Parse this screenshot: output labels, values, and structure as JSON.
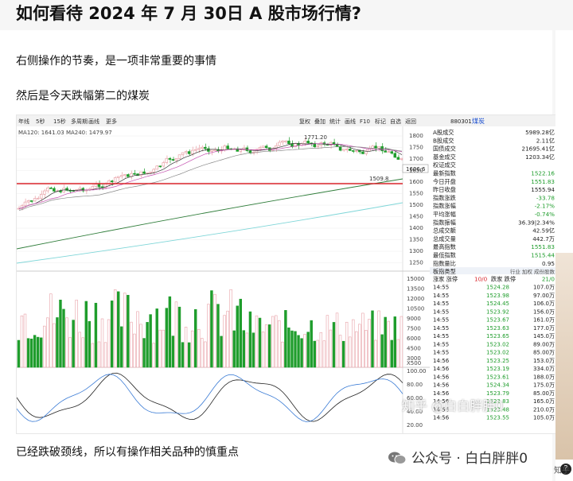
{
  "article": {
    "title": "如何看待 2024 年 7 月 30日 A 股市场行情?",
    "para1": "右侧操作的节奏，是一项非常重要的事情",
    "para2": "然后是今天跌幅第二的煤炭",
    "para3": "已经跌破颈线，所以有操作相关品种的慎重点"
  },
  "watermark": {
    "account": "公众号 · 白白胖胖0",
    "zhihu": "知乎 @白白胖胖0"
  },
  "sidebar": {
    "label": "知乎",
    "help": "?"
  },
  "colors": {
    "up": "#e8a1a7",
    "down": "#1f9d2c",
    "ma_red": "#d8232a",
    "ma_cyan": "#7fd6d8",
    "ma_green": "#2f7d3a"
  },
  "chart": {
    "toolbar_left": [
      "年线",
      "5秒",
      "15秒",
      "多周期",
      "画线",
      "更多"
    ],
    "toolbar_right": [
      "复权",
      "叠加",
      "统计",
      "画线",
      "F10",
      "标记",
      "自选",
      "返回"
    ],
    "ma_legend": "MA120: 1641.03  MA240: 1479.97",
    "peak_label": "1771.20",
    "low_label": "1509.8",
    "current_price": "1606.6",
    "index_code": "880301",
    "index_name": "煤炭",
    "price_ticks": [
      "1800",
      "1750",
      "1700",
      "1650",
      "1600",
      "1550",
      "1500",
      "1450",
      "1400",
      "1350",
      "1300",
      "1250"
    ],
    "vol_ticks": [
      "15000",
      "13500",
      "12000",
      "10500",
      "9000",
      "7500",
      "6000",
      "4500",
      "3000"
    ],
    "vol_unit": "X500",
    "ind_ticks": [
      "100.00",
      "80.00",
      "60.00",
      "40.00",
      "20.00"
    ]
  },
  "quotes": [
    {
      "label": "A股成交",
      "value": "5989.28亿",
      "color": "#222"
    },
    {
      "label": "B股成交",
      "value": "2.11亿",
      "color": "#222"
    },
    {
      "label": "国债成交",
      "value": "21695.41亿",
      "color": "#222"
    },
    {
      "label": "基金成交",
      "value": "1203.34亿",
      "color": "#222"
    },
    {
      "label": "权证成交",
      "value": "",
      "color": "#222"
    },
    {
      "label": "最新指数",
      "value": "1522.16",
      "color": "#1f9d2c"
    },
    {
      "label": "今日开盘",
      "value": "1551.83",
      "color": "#1f9d2c"
    },
    {
      "label": "昨日收盘",
      "value": "1555.94",
      "color": "#222"
    },
    {
      "label": "指数涨跌",
      "value": "-33.78",
      "color": "#1f9d2c"
    },
    {
      "label": "指数涨幅",
      "value": "-2.17%",
      "color": "#1f9d2c"
    },
    {
      "label": "平均涨幅",
      "value": "-0.74%",
      "color": "#1f9d2c"
    },
    {
      "label": "指数振幅",
      "value": "36.39|2.34%",
      "color": "#222"
    },
    {
      "label": "总成交额",
      "value": "42.59亿",
      "color": "#222"
    },
    {
      "label": "总成交量",
      "value": "442.7万",
      "color": "#222"
    },
    {
      "label": "最高指数",
      "value": "1551.83",
      "color": "#1f9d2c"
    },
    {
      "label": "最低指数",
      "value": "1515.44",
      "color": "#1f9d2c"
    },
    {
      "label": "指数量比",
      "value": "0.95",
      "color": "#222"
    }
  ],
  "sector_header": {
    "label": "板指类型",
    "right": "行业 加权 成份股数"
  },
  "updown": {
    "label": "涨家 涨停",
    "mid": "10/0",
    "mid2": "跌家 跌停",
    "right": "21/0"
  },
  "ticks": [
    {
      "time": "14:55",
      "price": "1524.28",
      "vol": "107.0万"
    },
    {
      "time": "14:55",
      "price": "1523.98",
      "vol": "97.00万"
    },
    {
      "time": "14:55",
      "price": "1524.45",
      "vol": "106.0万"
    },
    {
      "time": "14:55",
      "price": "1523.92",
      "vol": "156.0万"
    },
    {
      "time": "14:55",
      "price": "1523.67",
      "vol": "161.0万"
    },
    {
      "time": "14:55",
      "price": "1523.63",
      "vol": "177.0万"
    },
    {
      "time": "14:55",
      "price": "1523.65",
      "vol": "145.0万"
    },
    {
      "time": "14:55",
      "price": "1523.02",
      "vol": "89.00万"
    },
    {
      "time": "14:55",
      "price": "1523.02",
      "vol": "85.00万"
    },
    {
      "time": "14:56",
      "price": "1523.25",
      "vol": "153.0万"
    },
    {
      "time": "14:56",
      "price": "1523.19",
      "vol": "334.0万"
    },
    {
      "time": "14:56",
      "price": "1523.61",
      "vol": "188.0万"
    },
    {
      "time": "14:56",
      "price": "1524.34",
      "vol": "175.0万"
    },
    {
      "time": "14:56",
      "price": "1523.79",
      "vol": "85.00万"
    },
    {
      "time": "14:56",
      "price": "1523.83",
      "vol": "165.0万"
    },
    {
      "time": "14:56",
      "price": "1523.48",
      "vol": "210.0万"
    },
    {
      "time": "14:56",
      "price": "1523.55",
      "vol": "105.0万"
    }
  ]
}
